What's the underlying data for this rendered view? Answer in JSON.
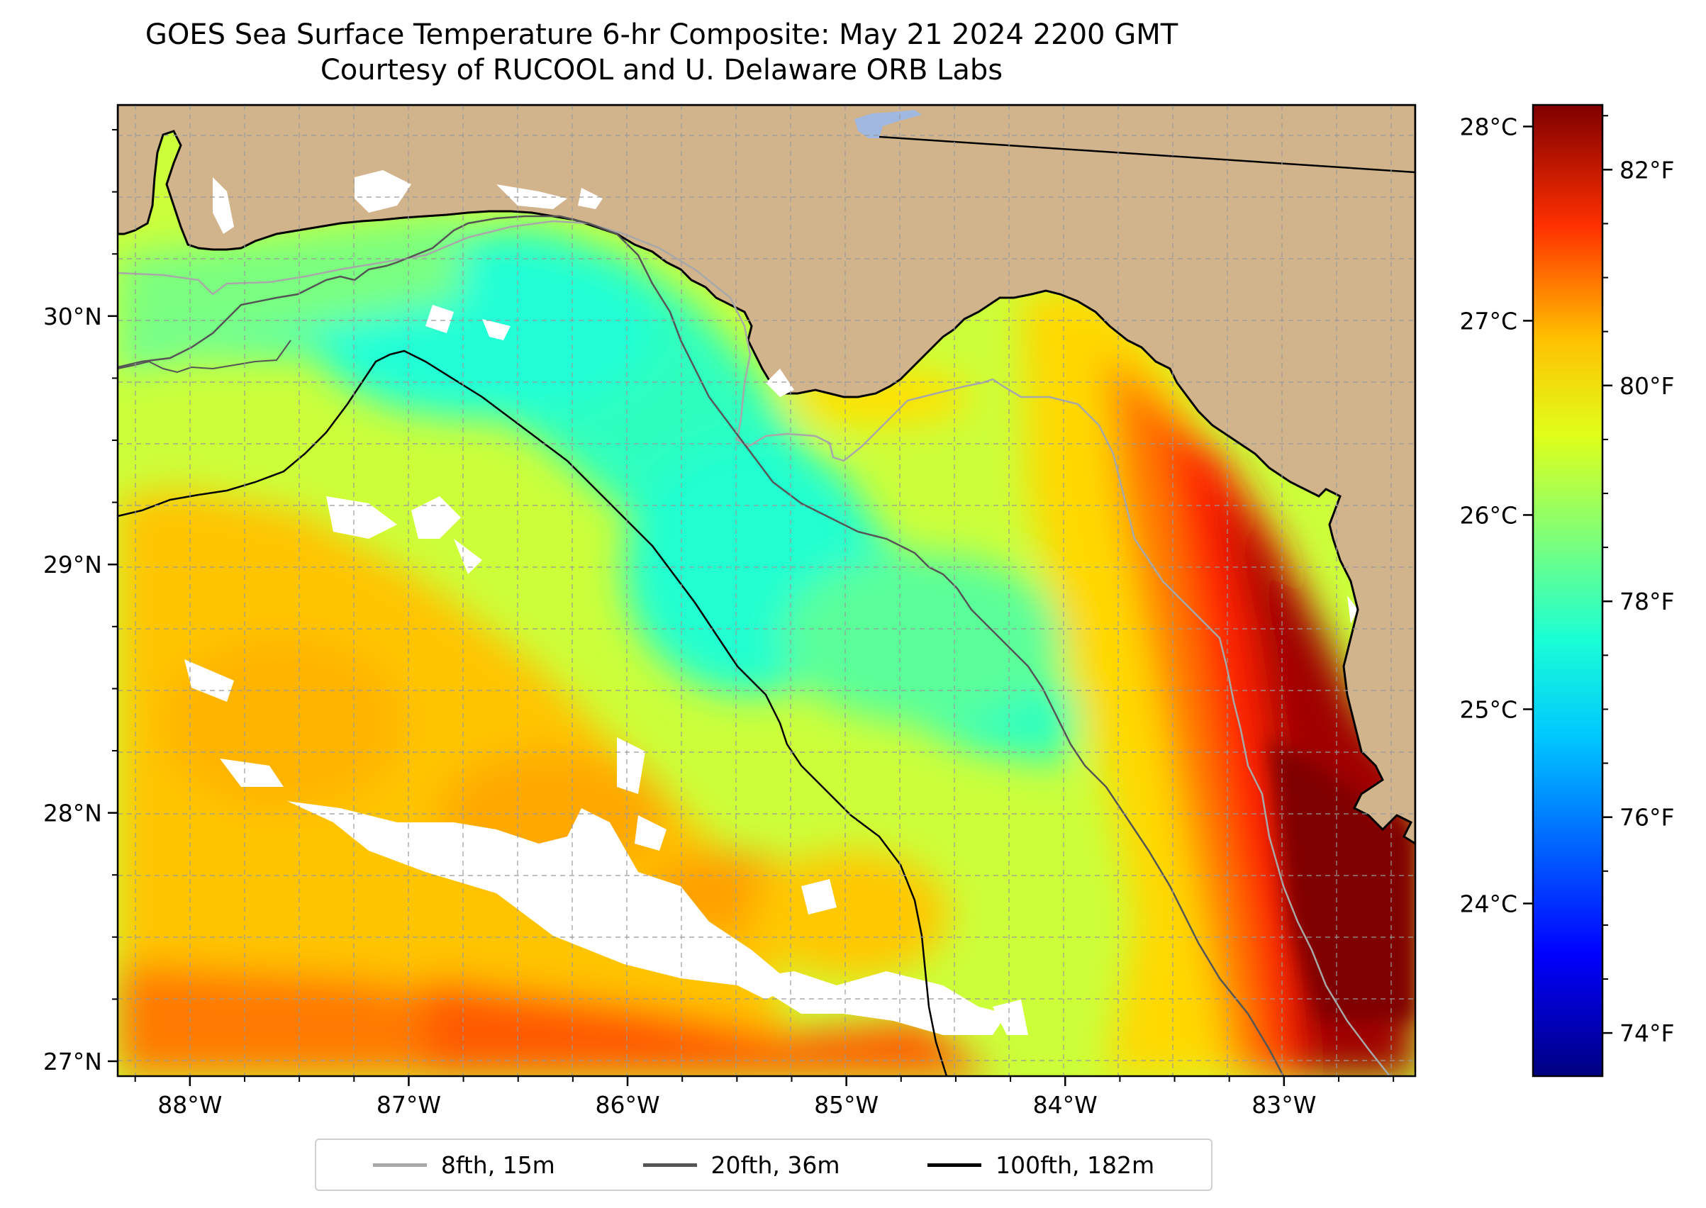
{
  "title": {
    "line1": "GOES Sea Surface Temperature 6-hr Composite: May 21 2024 2200 GMT",
    "line2": "Courtesy of RUCOOL and U. Delaware ORB Labs"
  },
  "map_data": {
    "region": "Northeastern Gulf of Mexico / Florida Big Bend",
    "lon_range": [
      -88.33,
      -82.4
    ],
    "lat_range": [
      26.94,
      30.85
    ],
    "lon_ticks": [
      {
        "value": -88,
        "label": "88°W"
      },
      {
        "value": -87,
        "label": "87°W"
      },
      {
        "value": -86,
        "label": "86°W"
      },
      {
        "value": -85,
        "label": "85°W"
      },
      {
        "value": -84,
        "label": "84°W"
      },
      {
        "value": -83,
        "label": "83°W"
      }
    ],
    "lat_ticks": [
      {
        "value": 27,
        "label": "27°N"
      },
      {
        "value": 28,
        "label": "28°N"
      },
      {
        "value": 29,
        "label": "29°N"
      },
      {
        "value": 30,
        "label": "30°N"
      }
    ],
    "minor_tick_step_deg": 0.25,
    "gridlines": true,
    "colors": {
      "land": "#d2b48c",
      "no_data": "#ffffff",
      "lake": "#a0b8e0"
    }
  },
  "colorbar": {
    "colormap": "jet",
    "f_range": [
      73.6,
      82.6
    ],
    "celsius_ticks": [
      {
        "value": 24,
        "label": "24°C"
      },
      {
        "value": 25,
        "label": "25°C"
      },
      {
        "value": 26,
        "label": "26°C"
      },
      {
        "value": 27,
        "label": "27°C"
      },
      {
        "value": 28,
        "label": "28°C"
      }
    ],
    "fahrenheit_ticks": [
      {
        "value": 74,
        "label": "74°F"
      },
      {
        "value": 76,
        "label": "76°F"
      },
      {
        "value": 78,
        "label": "78°F"
      },
      {
        "value": 80,
        "label": "80°F"
      },
      {
        "value": 82,
        "label": "82°F"
      }
    ]
  },
  "legend": {
    "placement": "bottom-center",
    "items": [
      {
        "label": "8fth, 15m",
        "color": "#a8a8a8"
      },
      {
        "label": "20fth, 36m",
        "color": "#555555"
      },
      {
        "label": "100fth, 182m",
        "color": "#000000"
      }
    ]
  }
}
